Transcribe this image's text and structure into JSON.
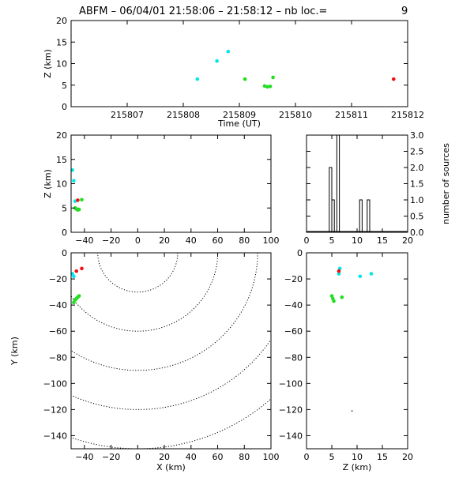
{
  "header": {
    "title": "ABFM – 06/04/01 21:58:06 – 21:58:12 – nb loc.=",
    "count": "9"
  },
  "colors": {
    "cyan": "#00e8e8",
    "green": "#22dd22",
    "red": "#ee1111",
    "axis": "#000000"
  },
  "chart_data": [
    {
      "panel": "time-altitude",
      "type": "scatter",
      "xlabel": "Time (UT)",
      "ylabel": "Z (km)",
      "xlim": [
        215806.0,
        215812.0
      ],
      "ylim": [
        0,
        20
      ],
      "xticks": [
        215807,
        215808,
        215809,
        215810,
        215811,
        215812
      ],
      "xtick_labels": [
        "215807",
        "215808",
        "215809",
        "215810",
        "215811",
        "215812"
      ],
      "yticks": [
        0,
        5,
        10,
        15,
        20
      ],
      "ytick_labels": [
        "0",
        "5",
        "10",
        "15",
        "20"
      ],
      "points": [
        {
          "x": 215808.25,
          "y": 6.4,
          "color": "cyan"
        },
        {
          "x": 215808.6,
          "y": 10.6,
          "color": "cyan"
        },
        {
          "x": 215808.8,
          "y": 12.8,
          "color": "cyan"
        },
        {
          "x": 215809.1,
          "y": 6.4,
          "color": "green"
        },
        {
          "x": 215809.45,
          "y": 4.8,
          "color": "green"
        },
        {
          "x": 215809.5,
          "y": 4.6,
          "color": "green"
        },
        {
          "x": 215809.55,
          "y": 4.7,
          "color": "green"
        },
        {
          "x": 215809.6,
          "y": 6.8,
          "color": "green"
        },
        {
          "x": 215811.75,
          "y": 6.4,
          "color": "red"
        }
      ]
    },
    {
      "panel": "x-altitude",
      "type": "scatter",
      "xlabel": "",
      "ylabel": "Z (km)",
      "xlim": [
        -50,
        100
      ],
      "ylim": [
        0,
        20
      ],
      "xticks": [
        -40,
        -20,
        0,
        20,
        40,
        60,
        80,
        100
      ],
      "xtick_labels": [
        "−40",
        "−20",
        "0",
        "20",
        "40",
        "60",
        "80",
        "100"
      ],
      "yticks": [
        0,
        5,
        10,
        15,
        20
      ],
      "ytick_labels": [
        "0",
        "5",
        "10",
        "15",
        "20"
      ],
      "points": [
        {
          "x": -49,
          "y": 12.8,
          "color": "cyan"
        },
        {
          "x": -48,
          "y": 10.6,
          "color": "cyan"
        },
        {
          "x": -47,
          "y": 6.4,
          "color": "cyan"
        },
        {
          "x": -45,
          "y": 6.6,
          "color": "red"
        },
        {
          "x": -42,
          "y": 6.7,
          "color": "green"
        },
        {
          "x": -47,
          "y": 5.0,
          "color": "green"
        },
        {
          "x": -46,
          "y": 4.8,
          "color": "green"
        },
        {
          "x": -45,
          "y": 4.6,
          "color": "green"
        },
        {
          "x": -44,
          "y": 4.7,
          "color": "green"
        }
      ]
    },
    {
      "panel": "altitude-histogram",
      "type": "bar",
      "xlabel": "",
      "ylabel": "number of sources",
      "xlim": [
        0,
        20
      ],
      "ylim": [
        0,
        3
      ],
      "xticks": [
        0,
        5,
        10,
        15,
        20
      ],
      "xtick_labels": [
        "0",
        "5",
        "10",
        "15",
        "20"
      ],
      "yticks": [
        0,
        0.5,
        1,
        1.5,
        2,
        2.5,
        3
      ],
      "ytick_labels": [
        "0.0",
        "0.5",
        "1.0",
        "1.5",
        "2.0",
        "2.5",
        "3.0"
      ],
      "bin_edges": [
        0,
        0.5,
        1,
        1.5,
        2,
        2.5,
        3,
        3.5,
        4,
        4.5,
        5,
        5.5,
        6,
        6.5,
        7,
        7.5,
        8,
        8.5,
        9,
        9.5,
        10,
        10.5,
        11,
        11.5,
        12,
        12.5,
        13,
        13.5,
        14,
        14.5,
        15,
        15.5,
        16,
        16.5,
        17,
        17.5,
        18,
        18.5,
        19,
        19.5,
        20
      ],
      "values": [
        0,
        0,
        0,
        0,
        0,
        0,
        0,
        0,
        0,
        2,
        1,
        0,
        3,
        0,
        0,
        0,
        0,
        0,
        0,
        0,
        0,
        1,
        0,
        0,
        1,
        0,
        0,
        0,
        0,
        0,
        0,
        0,
        0,
        0,
        0,
        0,
        0,
        0,
        0,
        0
      ]
    },
    {
      "panel": "x-y-map",
      "type": "scatter",
      "xlabel": "X (km)",
      "ylabel": "Y (km)",
      "xlim": [
        -50,
        100
      ],
      "ylim": [
        -150,
        0
      ],
      "xticks": [
        -40,
        -20,
        0,
        20,
        40,
        60,
        80,
        100
      ],
      "xtick_labels": [
        "−40",
        "−20",
        "0",
        "20",
        "40",
        "60",
        "80",
        "100"
      ],
      "yticks": [
        -140,
        -120,
        -100,
        -80,
        -60,
        -40,
        -20,
        0
      ],
      "ytick_labels": [
        "−140",
        "−120",
        "−100",
        "−80",
        "−60",
        "−40",
        "−20",
        "0"
      ],
      "range_rings_km": [
        30,
        60,
        90,
        120,
        150
      ],
      "points": [
        {
          "x": -49,
          "y": -16,
          "color": "cyan"
        },
        {
          "x": -48,
          "y": -18,
          "color": "cyan"
        },
        {
          "x": -46,
          "y": -14,
          "color": "red"
        },
        {
          "x": -42,
          "y": -12,
          "color": "red"
        },
        {
          "x": -48,
          "y": -38,
          "color": "green"
        },
        {
          "x": -47,
          "y": -36,
          "color": "green"
        },
        {
          "x": -46,
          "y": -35,
          "color": "green"
        },
        {
          "x": -45,
          "y": -34,
          "color": "green"
        },
        {
          "x": -44,
          "y": -33,
          "color": "green"
        }
      ]
    },
    {
      "panel": "altitude-y",
      "type": "scatter",
      "xlabel": "Z (km)",
      "ylabel": "",
      "xlim": [
        0,
        20
      ],
      "ylim": [
        -150,
        0
      ],
      "xticks": [
        0,
        5,
        10,
        15,
        20
      ],
      "xtick_labels": [
        "0",
        "5",
        "10",
        "15",
        "20"
      ],
      "yticks": [
        -140,
        -120,
        -100,
        -80,
        -60,
        -40,
        -20,
        0
      ],
      "ytick_labels": [
        "−140",
        "−120",
        "−100",
        "−80",
        "−60",
        "−40",
        "−20",
        "0"
      ],
      "points": [
        {
          "x": 6.4,
          "y": -16,
          "color": "cyan"
        },
        {
          "x": 6.6,
          "y": -12,
          "color": "cyan"
        },
        {
          "x": 10.6,
          "y": -18,
          "color": "cyan"
        },
        {
          "x": 12.8,
          "y": -16,
          "color": "cyan"
        },
        {
          "x": 6.4,
          "y": -14,
          "color": "red"
        },
        {
          "x": 5.0,
          "y": -33,
          "color": "green"
        },
        {
          "x": 5.2,
          "y": -35,
          "color": "green"
        },
        {
          "x": 5.4,
          "y": -37,
          "color": "green"
        },
        {
          "x": 7.0,
          "y": -34,
          "color": "green"
        },
        {
          "x": 9.0,
          "y": -121,
          "color": "axis"
        }
      ]
    }
  ]
}
